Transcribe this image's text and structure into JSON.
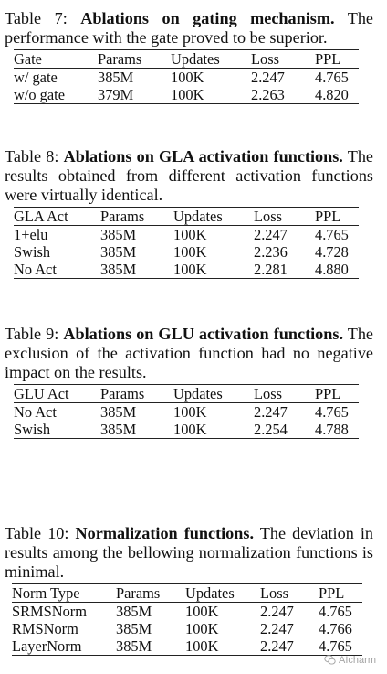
{
  "tables": [
    {
      "caption_prefix": "Table 7: ",
      "caption_bold": "Ablations on gating mechanism.",
      "caption_rest": " The performance with the gate proved to be superior.",
      "headers": [
        "Gate",
        "Params",
        "Updates",
        "Loss",
        "PPL"
      ],
      "rows": [
        [
          "w/ gate",
          "385M",
          "100K",
          "2.247",
          "4.765"
        ],
        [
          "w/o gate",
          "379M",
          "100K",
          "2.263",
          "4.820"
        ]
      ]
    },
    {
      "caption_prefix": "Table 8: ",
      "caption_bold": "Ablations on GLA activation functions.",
      "caption_rest": " The results obtained from different activation functions were virtually identical.",
      "headers": [
        "GLA Act",
        "Params",
        "Updates",
        "Loss",
        "PPL"
      ],
      "rows": [
        [
          "1+elu",
          "385M",
          "100K",
          "2.247",
          "4.765"
        ],
        [
          "Swish",
          "385M",
          "100K",
          "2.236",
          "4.728"
        ],
        [
          "No Act",
          "385M",
          "100K",
          "2.281",
          "4.880"
        ]
      ]
    },
    {
      "caption_prefix": "Table 9: ",
      "caption_bold": "Ablations on GLU activation functions.",
      "caption_rest": " The exclusion of the activation function had no negative impact on the results.",
      "headers": [
        "GLU Act",
        "Params",
        "Updates",
        "Loss",
        "PPL"
      ],
      "rows": [
        [
          "No Act",
          "385M",
          "100K",
          "2.247",
          "4.765"
        ],
        [
          "Swish",
          "385M",
          "100K",
          "2.254",
          "4.788"
        ]
      ]
    },
    {
      "caption_prefix": "Table 10: ",
      "caption_bold": "Normalization functions.",
      "caption_rest": " The deviation in results among the bellowing normalization functions is minimal.",
      "headers": [
        "Norm Type",
        "Params",
        "Updates",
        "Loss",
        "PPL"
      ],
      "rows": [
        [
          "SRMSNorm",
          "385M",
          "100K",
          "2.247",
          "4.765"
        ],
        [
          "RMSNorm",
          "385M",
          "100K",
          "2.247",
          "4.766"
        ],
        [
          "LayerNorm",
          "385M",
          "100K",
          "2.247",
          "4.765"
        ]
      ]
    }
  ],
  "watermark": {
    "text": "AIcharm",
    "icon": "wechat-icon"
  }
}
